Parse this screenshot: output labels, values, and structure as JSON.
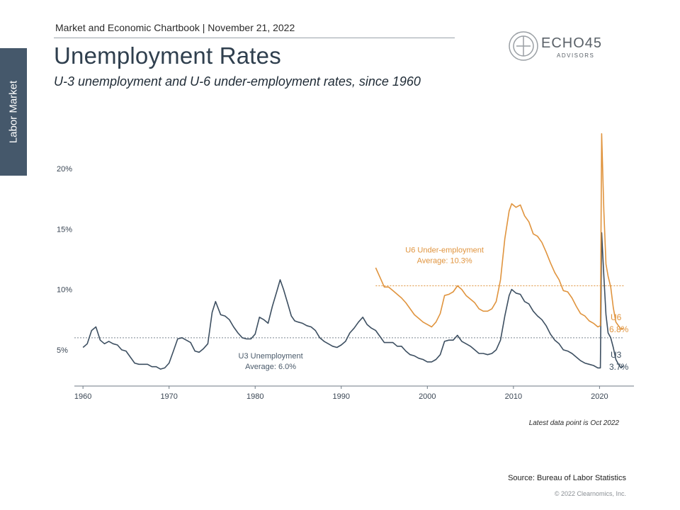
{
  "header": {
    "chartbook": "Market and Economic Chartbook | November 21, 2022",
    "title": "Unemployment Rates",
    "subtitle": "U-3 unemployment and U-6 under-employment rates, since 1960",
    "side_tab": "Labor Market"
  },
  "logo": {
    "word": "ECHO45",
    "sub": "ADVISORS"
  },
  "footer": {
    "note": "Latest data point is Oct 2022",
    "source": "Source: Bureau of Labor Statistics",
    "copyright": "© 2022 Clearnomics, Inc."
  },
  "colors": {
    "u3": "#3d4f61",
    "u6": "#e0943e",
    "text": "#2f3f4e"
  },
  "chart_data": {
    "type": "line",
    "xlim": [
      1959,
      2024
    ],
    "ylim": [
      2,
      24
    ],
    "x_ticks": [
      1960,
      1970,
      1980,
      1990,
      2000,
      2010,
      2020
    ],
    "x_tick_labels": [
      "1960",
      "1970",
      "1980",
      "1990",
      "2000",
      "2010",
      "2020"
    ],
    "y_ticks": [
      5,
      10,
      15,
      20
    ],
    "y_tick_labels": [
      "5%",
      "10%",
      "15%",
      "20%"
    ],
    "grid": false,
    "series": [
      {
        "name": "U3",
        "end_label": "U3",
        "end_value_label": "3.7%",
        "average": 6.0,
        "average_label_line1": "U3 Unemployment",
        "average_label_line2": "Average: 6.0%",
        "points": [
          [
            1960.0,
            5.2
          ],
          [
            1960.5,
            5.5
          ],
          [
            1961.0,
            6.6
          ],
          [
            1961.5,
            6.9
          ],
          [
            1962.0,
            5.8
          ],
          [
            1962.5,
            5.5
          ],
          [
            1963.0,
            5.7
          ],
          [
            1963.5,
            5.5
          ],
          [
            1964.0,
            5.4
          ],
          [
            1964.5,
            5.0
          ],
          [
            1965.0,
            4.9
          ],
          [
            1965.5,
            4.4
          ],
          [
            1966.0,
            3.9
          ],
          [
            1966.5,
            3.8
          ],
          [
            1967.0,
            3.8
          ],
          [
            1967.5,
            3.8
          ],
          [
            1968.0,
            3.6
          ],
          [
            1968.5,
            3.6
          ],
          [
            1969.0,
            3.4
          ],
          [
            1969.5,
            3.5
          ],
          [
            1970.0,
            3.9
          ],
          [
            1970.5,
            4.9
          ],
          [
            1971.0,
            5.9
          ],
          [
            1971.5,
            6.0
          ],
          [
            1972.0,
            5.8
          ],
          [
            1972.5,
            5.6
          ],
          [
            1973.0,
            4.9
          ],
          [
            1973.5,
            4.8
          ],
          [
            1974.0,
            5.1
          ],
          [
            1974.5,
            5.5
          ],
          [
            1975.0,
            8.1
          ],
          [
            1975.4,
            9.0
          ],
          [
            1976.0,
            7.9
          ],
          [
            1976.5,
            7.8
          ],
          [
            1977.0,
            7.5
          ],
          [
            1977.5,
            6.9
          ],
          [
            1978.0,
            6.4
          ],
          [
            1978.5,
            6.0
          ],
          [
            1979.0,
            5.9
          ],
          [
            1979.5,
            5.9
          ],
          [
            1980.0,
            6.3
          ],
          [
            1980.5,
            7.7
          ],
          [
            1981.0,
            7.5
          ],
          [
            1981.5,
            7.2
          ],
          [
            1982.0,
            8.6
          ],
          [
            1982.5,
            9.8
          ],
          [
            1982.9,
            10.8
          ],
          [
            1983.3,
            10.0
          ],
          [
            1983.8,
            8.8
          ],
          [
            1984.2,
            7.8
          ],
          [
            1984.6,
            7.4
          ],
          [
            1985.0,
            7.3
          ],
          [
            1985.5,
            7.2
          ],
          [
            1986.0,
            7.0
          ],
          [
            1986.5,
            6.9
          ],
          [
            1987.0,
            6.6
          ],
          [
            1987.5,
            6.0
          ],
          [
            1988.0,
            5.7
          ],
          [
            1988.5,
            5.5
          ],
          [
            1989.0,
            5.3
          ],
          [
            1989.5,
            5.2
          ],
          [
            1990.0,
            5.4
          ],
          [
            1990.5,
            5.7
          ],
          [
            1991.0,
            6.4
          ],
          [
            1991.5,
            6.8
          ],
          [
            1992.0,
            7.3
          ],
          [
            1992.5,
            7.7
          ],
          [
            1993.0,
            7.1
          ],
          [
            1993.5,
            6.8
          ],
          [
            1994.0,
            6.6
          ],
          [
            1994.5,
            6.1
          ],
          [
            1995.0,
            5.6
          ],
          [
            1995.5,
            5.6
          ],
          [
            1996.0,
            5.6
          ],
          [
            1996.5,
            5.3
          ],
          [
            1997.0,
            5.3
          ],
          [
            1997.5,
            4.9
          ],
          [
            1998.0,
            4.6
          ],
          [
            1998.5,
            4.5
          ],
          [
            1999.0,
            4.3
          ],
          [
            1999.5,
            4.2
          ],
          [
            2000.0,
            4.0
          ],
          [
            2000.5,
            4.0
          ],
          [
            2001.0,
            4.2
          ],
          [
            2001.5,
            4.6
          ],
          [
            2002.0,
            5.7
          ],
          [
            2002.5,
            5.8
          ],
          [
            2003.0,
            5.8
          ],
          [
            2003.5,
            6.2
          ],
          [
            2004.0,
            5.7
          ],
          [
            2004.5,
            5.5
          ],
          [
            2005.0,
            5.3
          ],
          [
            2005.5,
            5.0
          ],
          [
            2006.0,
            4.7
          ],
          [
            2006.5,
            4.7
          ],
          [
            2007.0,
            4.6
          ],
          [
            2007.5,
            4.7
          ],
          [
            2008.0,
            5.0
          ],
          [
            2008.5,
            5.8
          ],
          [
            2009.0,
            7.8
          ],
          [
            2009.5,
            9.5
          ],
          [
            2009.8,
            10.0
          ],
          [
            2010.3,
            9.7
          ],
          [
            2010.8,
            9.6
          ],
          [
            2011.3,
            9.0
          ],
          [
            2011.8,
            8.8
          ],
          [
            2012.3,
            8.2
          ],
          [
            2012.8,
            7.8
          ],
          [
            2013.3,
            7.5
          ],
          [
            2013.8,
            7.0
          ],
          [
            2014.3,
            6.3
          ],
          [
            2014.8,
            5.8
          ],
          [
            2015.3,
            5.5
          ],
          [
            2015.8,
            5.0
          ],
          [
            2016.3,
            4.9
          ],
          [
            2016.8,
            4.7
          ],
          [
            2017.3,
            4.4
          ],
          [
            2017.8,
            4.1
          ],
          [
            2018.3,
            3.9
          ],
          [
            2018.8,
            3.8
          ],
          [
            2019.3,
            3.7
          ],
          [
            2019.8,
            3.5
          ],
          [
            2020.1,
            3.5
          ],
          [
            2020.25,
            14.7
          ],
          [
            2020.5,
            11.1
          ],
          [
            2020.75,
            7.9
          ],
          [
            2021.0,
            6.4
          ],
          [
            2021.3,
            6.0
          ],
          [
            2021.6,
            5.2
          ],
          [
            2021.9,
            4.2
          ],
          [
            2022.2,
            3.8
          ],
          [
            2022.5,
            3.5
          ],
          [
            2022.8,
            3.7
          ]
        ]
      },
      {
        "name": "U6",
        "end_label": "U6",
        "end_value_label": "6.8%",
        "average": 10.3,
        "average_label_line1": "U6 Under-employment",
        "average_label_line2": "Average: 10.3%",
        "points": [
          [
            1994.0,
            11.8
          ],
          [
            1994.5,
            11.0
          ],
          [
            1995.0,
            10.2
          ],
          [
            1995.5,
            10.2
          ],
          [
            1996.0,
            9.9
          ],
          [
            1996.5,
            9.6
          ],
          [
            1997.0,
            9.3
          ],
          [
            1997.5,
            8.9
          ],
          [
            1998.0,
            8.4
          ],
          [
            1998.5,
            7.9
          ],
          [
            1999.0,
            7.6
          ],
          [
            1999.5,
            7.3
          ],
          [
            2000.0,
            7.1
          ],
          [
            2000.5,
            6.9
          ],
          [
            2001.0,
            7.3
          ],
          [
            2001.5,
            8.0
          ],
          [
            2002.0,
            9.5
          ],
          [
            2002.5,
            9.6
          ],
          [
            2003.0,
            9.8
          ],
          [
            2003.5,
            10.3
          ],
          [
            2004.0,
            10.0
          ],
          [
            2004.5,
            9.5
          ],
          [
            2005.0,
            9.2
          ],
          [
            2005.5,
            8.9
          ],
          [
            2006.0,
            8.4
          ],
          [
            2006.5,
            8.2
          ],
          [
            2007.0,
            8.2
          ],
          [
            2007.5,
            8.4
          ],
          [
            2008.0,
            9.0
          ],
          [
            2008.5,
            10.8
          ],
          [
            2009.0,
            14.2
          ],
          [
            2009.5,
            16.5
          ],
          [
            2009.8,
            17.1
          ],
          [
            2010.3,
            16.8
          ],
          [
            2010.8,
            17.0
          ],
          [
            2011.3,
            16.1
          ],
          [
            2011.8,
            15.6
          ],
          [
            2012.3,
            14.6
          ],
          [
            2012.8,
            14.4
          ],
          [
            2013.3,
            13.9
          ],
          [
            2013.8,
            13.1
          ],
          [
            2014.3,
            12.2
          ],
          [
            2014.8,
            11.4
          ],
          [
            2015.3,
            10.8
          ],
          [
            2015.8,
            9.9
          ],
          [
            2016.3,
            9.8
          ],
          [
            2016.8,
            9.3
          ],
          [
            2017.3,
            8.6
          ],
          [
            2017.8,
            8.0
          ],
          [
            2018.3,
            7.8
          ],
          [
            2018.8,
            7.4
          ],
          [
            2019.3,
            7.2
          ],
          [
            2019.8,
            6.9
          ],
          [
            2020.1,
            7.0
          ],
          [
            2020.25,
            22.9
          ],
          [
            2020.5,
            16.5
          ],
          [
            2020.75,
            12.1
          ],
          [
            2021.0,
            11.1
          ],
          [
            2021.3,
            10.2
          ],
          [
            2021.6,
            8.5
          ],
          [
            2021.9,
            7.3
          ],
          [
            2022.2,
            7.0
          ],
          [
            2022.5,
            6.7
          ],
          [
            2022.8,
            6.8
          ]
        ]
      }
    ]
  }
}
